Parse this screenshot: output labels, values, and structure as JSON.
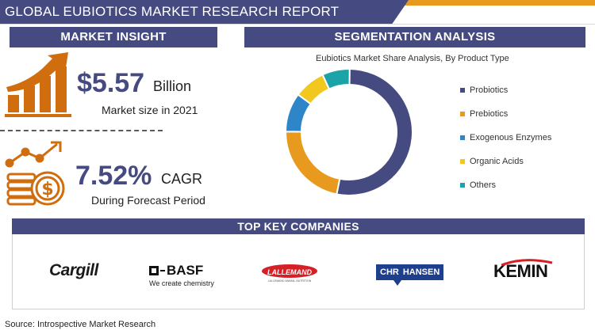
{
  "header": {
    "title": "GLOBAL EUBIOTICS MARKET RESEARCH REPORT",
    "accent": "#e89a1e",
    "primary": "#454a80"
  },
  "market_insight": {
    "header": "MARKET INSIGHT",
    "market_value": "$5.57",
    "market_unit": "Billion",
    "market_caption": "Market size in 2021",
    "cagr_value": "7.52%",
    "cagr_unit": "CAGR",
    "cagr_caption": "During Forecast Period",
    "icons": [
      "growth-bar-chart-icon",
      "coins-growth-icon"
    ]
  },
  "segmentation": {
    "header": "SEGMENTATION ANALYSIS"
  },
  "chart_data": {
    "type": "pie",
    "title": "Eubiotics Market Share Analysis, By Product Type",
    "donut": true,
    "legend_position": "right",
    "categories": [
      "Probiotics",
      "Prebiotics",
      "Exogenous Enzymes",
      "Organic Acids",
      "Others"
    ],
    "values": [
      53,
      22,
      10,
      8,
      7
    ],
    "colors": [
      "#454a80",
      "#e89a1e",
      "#2e86c8",
      "#f2c81e",
      "#1aa3a8"
    ]
  },
  "companies": {
    "header": "TOP KEY COMPANIES",
    "cargill": "Cargill",
    "basf_name": "BASF",
    "basf_tagline": "We create chemistry",
    "lallemand": "LALLEMAND",
    "lallemand_sub": "LALLEMAND ANIMAL NUTRITION",
    "chr_left": "CHR",
    "chr_right": "HANSEN",
    "kemin": "KEMIN"
  },
  "source": "Source: Introspective Market Research"
}
